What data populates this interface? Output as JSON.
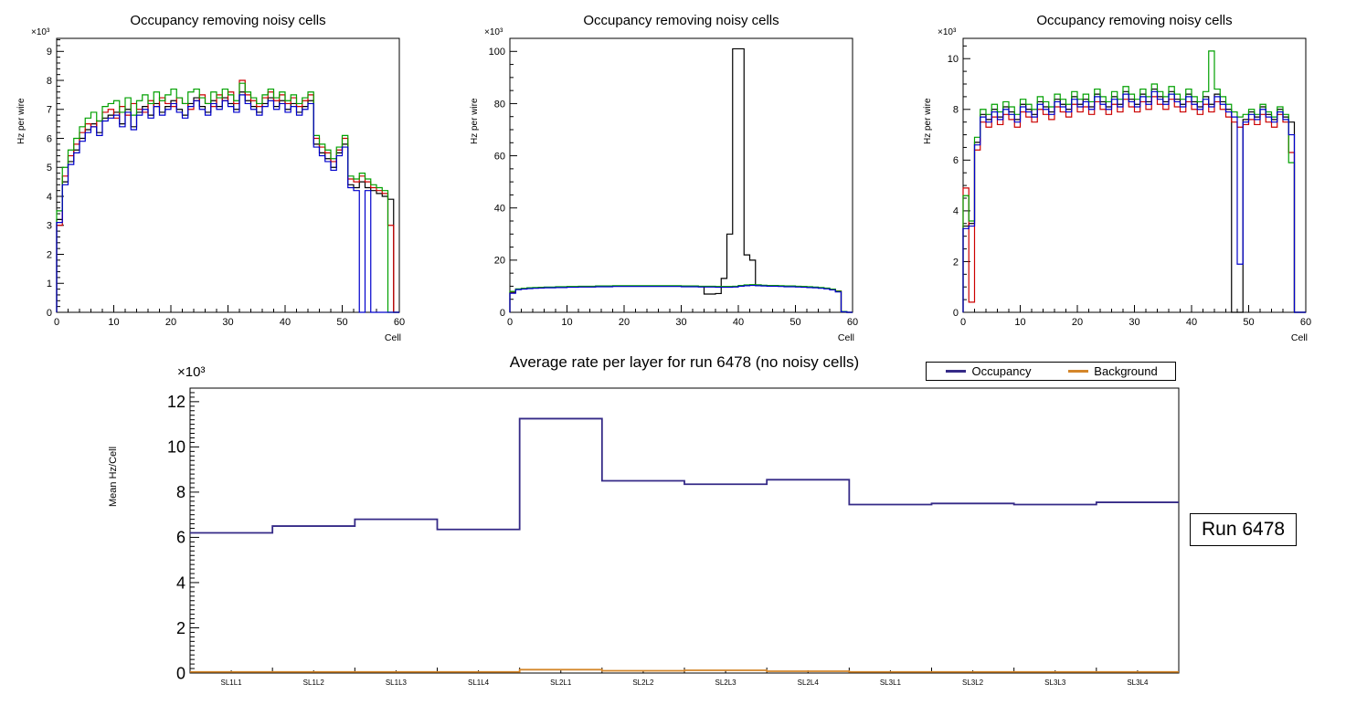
{
  "run_box": {
    "label": "Run 6478"
  },
  "chart_data": [
    {
      "type": "line",
      "render_hint": "step-histogram",
      "title": "Occupancy removing noisy cells",
      "ylabel": "Hz per wire",
      "xlabel": "Cell",
      "y_exponent": "×10³",
      "xlim": [
        0,
        60
      ],
      "ylim": [
        0,
        9.45
      ],
      "x_major": 10,
      "y_major": 1,
      "drop_ends": true,
      "grid": false,
      "series": [
        {
          "name": "layer-black",
          "color": "#000000",
          "values": [
            3.2,
            4.5,
            5.2,
            5.6,
            6.0,
            6.3,
            6.5,
            6.2,
            6.7,
            6.8,
            6.9,
            6.5,
            7.0,
            6.4,
            6.9,
            7.1,
            6.8,
            7.2,
            6.9,
            7.1,
            7.3,
            7.0,
            6.8,
            7.2,
            7.4,
            7.1,
            6.9,
            7.3,
            7.1,
            7.4,
            7.2,
            7.0,
            7.6,
            7.3,
            7.1,
            6.9,
            7.2,
            7.4,
            7.1,
            7.3,
            7.0,
            7.2,
            6.9,
            7.1,
            7.3,
            5.8,
            5.5,
            5.3,
            5.0,
            5.5,
            5.8,
            4.4,
            4.3,
            4.5,
            4.3,
            4.2,
            4.1,
            4.0,
            3.9,
            0.0
          ]
        },
        {
          "name": "layer-red",
          "color": "#cc0000",
          "values": [
            3.0,
            4.7,
            5.4,
            5.8,
            6.2,
            6.5,
            6.4,
            6.6,
            6.9,
            7.0,
            6.7,
            7.1,
            6.8,
            7.2,
            7.0,
            6.9,
            7.3,
            7.1,
            7.4,
            7.2,
            7.1,
            7.4,
            7.2,
            7.0,
            7.3,
            7.5,
            7.2,
            7.1,
            7.5,
            7.3,
            7.6,
            7.2,
            8.0,
            7.5,
            7.3,
            7.1,
            7.4,
            7.6,
            7.3,
            7.5,
            7.2,
            7.4,
            7.1,
            7.3,
            7.5,
            6.0,
            5.7,
            5.5,
            5.2,
            5.6,
            6.0,
            4.6,
            4.5,
            4.7,
            4.5,
            4.3,
            4.2,
            4.1,
            3.0,
            0.0
          ]
        },
        {
          "name": "layer-green",
          "color": "#00a000",
          "values": [
            3.5,
            5.0,
            5.6,
            6.0,
            6.4,
            6.7,
            6.9,
            6.6,
            7.1,
            7.2,
            7.3,
            6.9,
            7.4,
            6.8,
            7.3,
            7.5,
            7.2,
            7.6,
            7.3,
            7.5,
            7.7,
            7.4,
            7.2,
            7.6,
            7.7,
            7.4,
            7.2,
            7.6,
            7.4,
            7.7,
            7.5,
            7.3,
            7.9,
            7.6,
            7.4,
            7.2,
            7.5,
            7.7,
            7.4,
            7.6,
            7.3,
            7.5,
            7.2,
            7.4,
            7.6,
            6.1,
            5.8,
            5.6,
            5.3,
            5.7,
            6.1,
            4.7,
            4.6,
            4.8,
            4.6,
            4.4,
            4.3,
            4.2,
            0.0,
            0.0
          ]
        },
        {
          "name": "layer-blue",
          "color": "#0000cc",
          "values": [
            3.1,
            4.4,
            5.1,
            5.5,
            5.9,
            6.2,
            6.4,
            6.1,
            6.6,
            6.7,
            6.8,
            6.4,
            6.9,
            6.3,
            6.8,
            7.0,
            6.7,
            7.1,
            6.8,
            7.0,
            7.2,
            6.9,
            6.7,
            7.1,
            7.3,
            7.0,
            6.8,
            7.2,
            7.0,
            7.3,
            7.1,
            6.9,
            7.5,
            7.2,
            7.0,
            6.8,
            7.1,
            7.3,
            7.0,
            7.2,
            6.9,
            7.1,
            6.8,
            7.0,
            7.2,
            5.7,
            5.4,
            5.2,
            4.9,
            5.4,
            5.7,
            4.3,
            4.2,
            0.0,
            4.2,
            0.0,
            0.0,
            0.0,
            0.0,
            0.0
          ]
        }
      ]
    },
    {
      "type": "line",
      "render_hint": "step-histogram",
      "title": "Occupancy removing noisy cells",
      "ylabel": "Hz per wire",
      "xlabel": "Cell",
      "y_exponent": "×10³",
      "xlim": [
        0,
        60
      ],
      "ylim": [
        0,
        105
      ],
      "x_major": 10,
      "y_major": 20,
      "drop_ends": true,
      "grid": false,
      "series": [
        {
          "name": "layer-black",
          "color": "#000000",
          "values": [
            7.5,
            8.8,
            9.0,
            9.2,
            9.3,
            9.4,
            9.5,
            9.5,
            9.6,
            9.6,
            9.7,
            9.7,
            9.8,
            9.8,
            9.8,
            9.9,
            9.9,
            9.9,
            10.0,
            10.0,
            10.0,
            10.0,
            10.0,
            10.0,
            10.0,
            10.0,
            10.0,
            10.0,
            10.0,
            10.0,
            10.0,
            10.0,
            9.9,
            9.9,
            7.0,
            7.0,
            7.2,
            13.0,
            30.0,
            101.0,
            101.0,
            22.0,
            20.0,
            10.5,
            10.3,
            10.2,
            10.2,
            10.1,
            10.0,
            10.0,
            9.9,
            9.8,
            9.7,
            9.6,
            9.4,
            9.2,
            8.8,
            8.0,
            0.3,
            0.0
          ]
        },
        {
          "name": "layer-red",
          "color": "#cc0000",
          "values": [
            7.8,
            8.9,
            9.1,
            9.3,
            9.4,
            9.5,
            9.6,
            9.6,
            9.7,
            9.7,
            9.8,
            9.8,
            9.9,
            9.9,
            9.9,
            10.0,
            10.0,
            10.0,
            10.1,
            10.1,
            10.1,
            10.1,
            10.1,
            10.1,
            10.1,
            10.1,
            10.1,
            10.1,
            10.1,
            10.1,
            10.0,
            10.0,
            10.0,
            9.9,
            9.9,
            9.9,
            9.8,
            9.8,
            9.8,
            9.9,
            10.2,
            10.4,
            10.5,
            10.4,
            10.3,
            10.2,
            10.2,
            10.1,
            10.0,
            10.0,
            9.9,
            9.8,
            9.7,
            9.6,
            9.4,
            9.2,
            8.8,
            8.2,
            0.3,
            0.0
          ]
        },
        {
          "name": "layer-green",
          "color": "#00a000",
          "values": [
            8.0,
            9.0,
            9.2,
            9.4,
            9.5,
            9.6,
            9.7,
            9.7,
            9.8,
            9.8,
            9.9,
            9.9,
            10.0,
            10.0,
            10.0,
            10.1,
            10.1,
            10.1,
            10.2,
            10.2,
            10.2,
            10.2,
            10.2,
            10.2,
            10.2,
            10.2,
            10.2,
            10.2,
            10.2,
            10.2,
            10.1,
            10.1,
            10.1,
            10.0,
            10.0,
            10.0,
            9.9,
            9.9,
            9.9,
            10.0,
            10.3,
            10.5,
            10.6,
            10.5,
            10.4,
            10.3,
            10.3,
            10.2,
            10.1,
            10.1,
            10.0,
            9.9,
            9.8,
            9.7,
            9.5,
            9.3,
            8.9,
            8.1,
            0.3,
            0.0
          ]
        },
        {
          "name": "layer-blue",
          "color": "#0000cc",
          "values": [
            7.3,
            8.7,
            8.9,
            9.1,
            9.2,
            9.3,
            9.4,
            9.4,
            9.5,
            9.5,
            9.6,
            9.6,
            9.7,
            9.7,
            9.7,
            9.8,
            9.8,
            9.8,
            9.9,
            9.9,
            9.9,
            9.9,
            9.9,
            9.9,
            9.9,
            9.9,
            9.9,
            9.9,
            9.9,
            9.9,
            9.8,
            9.8,
            9.8,
            9.7,
            9.7,
            9.7,
            9.6,
            9.6,
            9.6,
            9.7,
            10.0,
            10.2,
            10.3,
            10.2,
            10.1,
            10.0,
            10.0,
            9.9,
            9.8,
            9.8,
            9.7,
            9.6,
            9.5,
            9.4,
            9.2,
            9.0,
            8.6,
            7.8,
            0.2,
            0.0
          ]
        }
      ]
    },
    {
      "type": "line",
      "render_hint": "step-histogram",
      "title": "Occupancy removing noisy cells",
      "ylabel": "Hz per wire",
      "xlabel": "Cell",
      "y_exponent": "×10³",
      "xlim": [
        0,
        60
      ],
      "ylim": [
        0,
        10.8
      ],
      "x_major": 10,
      "y_major": 2,
      "drop_ends": true,
      "grid": false,
      "series": [
        {
          "name": "layer-black",
          "color": "#000000",
          "values": [
            3.4,
            3.5,
            6.7,
            7.8,
            7.6,
            8.0,
            7.7,
            8.1,
            7.9,
            7.6,
            8.2,
            8.0,
            7.8,
            8.3,
            8.1,
            7.9,
            8.4,
            8.2,
            8.0,
            8.5,
            8.2,
            8.4,
            8.1,
            8.6,
            8.3,
            8.1,
            8.5,
            8.2,
            8.7,
            8.4,
            8.2,
            8.6,
            8.3,
            8.8,
            8.5,
            8.3,
            8.7,
            8.4,
            8.2,
            8.6,
            8.3,
            8.1,
            8.5,
            8.2,
            8.6,
            8.3,
            8.0,
            0.0,
            0.0,
            7.6,
            7.9,
            7.7,
            8.1,
            7.8,
            7.6,
            8.0,
            7.7,
            7.5,
            0.0,
            0.0
          ]
        },
        {
          "name": "layer-red",
          "color": "#cc0000",
          "values": [
            4.9,
            0.4,
            6.4,
            7.5,
            7.3,
            7.7,
            7.4,
            7.8,
            7.6,
            7.3,
            7.9,
            7.7,
            7.5,
            8.0,
            7.8,
            7.6,
            8.1,
            7.9,
            7.7,
            8.2,
            7.9,
            8.1,
            7.8,
            8.3,
            8.0,
            7.8,
            8.2,
            7.9,
            8.4,
            8.1,
            7.9,
            8.3,
            8.0,
            8.5,
            8.2,
            8.0,
            8.4,
            8.1,
            7.9,
            8.3,
            8.0,
            7.8,
            8.2,
            7.9,
            8.3,
            8.0,
            7.7,
            7.5,
            7.3,
            7.4,
            7.6,
            7.4,
            7.8,
            7.5,
            7.3,
            7.8,
            7.5,
            6.3,
            0.0,
            0.0
          ]
        },
        {
          "name": "layer-green",
          "color": "#00a000",
          "values": [
            4.6,
            3.6,
            6.9,
            8.0,
            7.8,
            8.2,
            7.9,
            8.3,
            8.1,
            7.8,
            8.4,
            8.2,
            8.0,
            8.5,
            8.3,
            8.1,
            8.6,
            8.4,
            8.2,
            8.7,
            8.4,
            8.6,
            8.3,
            8.8,
            8.5,
            8.3,
            8.7,
            8.4,
            8.9,
            8.6,
            8.4,
            8.8,
            8.5,
            9.0,
            8.7,
            8.5,
            8.9,
            8.6,
            8.4,
            8.8,
            8.5,
            8.3,
            8.7,
            10.3,
            8.8,
            8.5,
            8.2,
            7.9,
            7.7,
            7.8,
            8.0,
            7.8,
            8.2,
            7.9,
            7.7,
            8.1,
            7.8,
            5.9,
            0.0,
            0.0
          ]
        },
        {
          "name": "layer-blue",
          "color": "#0000cc",
          "values": [
            3.3,
            3.4,
            6.6,
            7.7,
            7.5,
            7.9,
            7.6,
            8.0,
            7.8,
            7.5,
            8.1,
            7.9,
            7.7,
            8.2,
            8.0,
            7.8,
            8.3,
            8.1,
            7.9,
            8.4,
            8.1,
            8.3,
            8.0,
            8.5,
            8.2,
            8.0,
            8.4,
            8.1,
            8.6,
            8.3,
            8.1,
            8.5,
            8.2,
            8.7,
            8.4,
            8.2,
            8.6,
            8.3,
            8.1,
            8.5,
            8.2,
            8.0,
            8.4,
            8.1,
            8.5,
            8.2,
            7.9,
            7.7,
            1.9,
            7.5,
            7.8,
            7.6,
            8.0,
            7.7,
            7.5,
            7.9,
            7.6,
            7.0,
            0.0,
            0.0
          ]
        }
      ]
    },
    {
      "type": "line",
      "render_hint": "step-by-category",
      "title": "Average rate per layer for run 6478 (no noisy cells)",
      "ylabel": "Mean Hz/Cell",
      "xlabel": "",
      "y_exponent": "×10³",
      "categories": [
        "SL1L1",
        "SL1L2",
        "SL1L3",
        "SL1L4",
        "SL2L1",
        "SL2L2",
        "SL2L3",
        "SL2L4",
        "SL3L1",
        "SL3L2",
        "SL3L3",
        "SL3L4"
      ],
      "ylim": [
        0,
        12.6
      ],
      "y_major": 2,
      "drop_ends": false,
      "grid": false,
      "legend_position": "top-right",
      "series": [
        {
          "name": "Occupancy",
          "color": "#352a87",
          "values": [
            6.2,
            6.5,
            6.8,
            6.35,
            11.25,
            8.5,
            8.35,
            8.55,
            7.45,
            7.5,
            7.45,
            7.55
          ]
        },
        {
          "name": "Background",
          "color": "#d4862a",
          "values": [
            0.05,
            0.05,
            0.05,
            0.05,
            0.15,
            0.1,
            0.12,
            0.08,
            0.05,
            0.05,
            0.05,
            0.05
          ]
        }
      ]
    }
  ]
}
